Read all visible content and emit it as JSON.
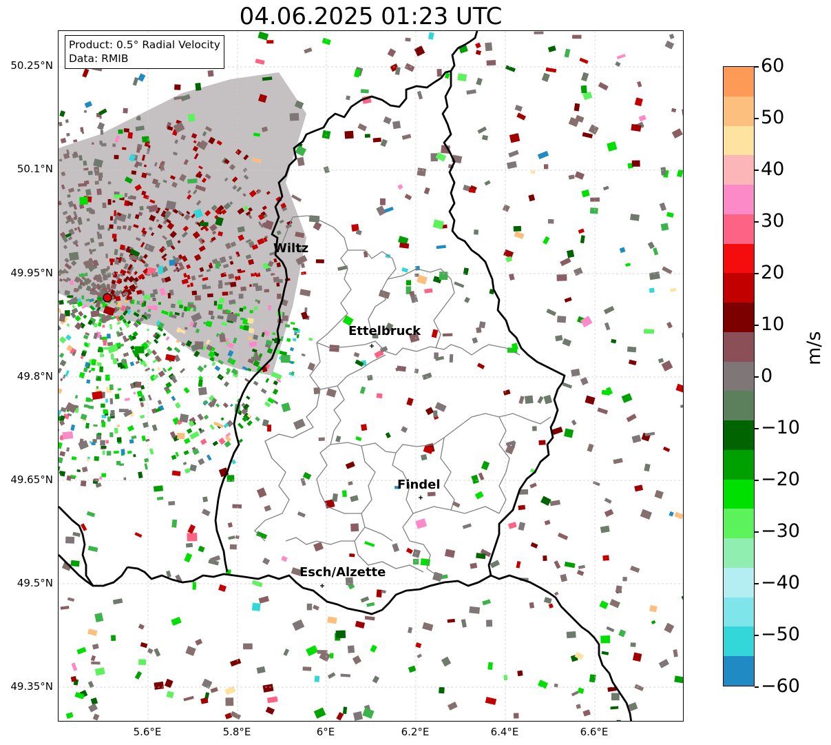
{
  "title": "04.06.2025 01:23 UTC",
  "info_box": {
    "product": "Product: 0.5° Radial Velocity",
    "data_source": "Data: RMIB"
  },
  "lat_labels": [
    "50.25°N",
    "50.1°N",
    "49.95°N",
    "49.8°N",
    "49.65°N",
    "49.5°N",
    "49.35°N"
  ],
  "lon_labels": [
    "5.6°E",
    "5.8°E",
    "6°E",
    "6.2°E",
    "6.4°E",
    "6.6°E"
  ],
  "cities": [
    {
      "name": "Wiltz"
    },
    {
      "name": "Ettelbruck"
    },
    {
      "name": "Findel"
    },
    {
      "name": "Esch/Alzette"
    }
  ],
  "colorbar": {
    "unit": "m/s",
    "ticks": [
      "60",
      "50",
      "40",
      "30",
      "20",
      "10",
      "0",
      "−10",
      "−20",
      "−30",
      "−40",
      "−50",
      "−60"
    ],
    "range": [
      -60,
      60
    ],
    "colors_top_to_bottom": [
      "#fd9a55",
      "#fdbf7d",
      "#fee3a0",
      "#fdb6b8",
      "#fc89c8",
      "#fc6384",
      "#f50c0c",
      "#c20000",
      "#7d0000",
      "#8a4f57",
      "#7e7677",
      "#5c7f5c",
      "#006400",
      "#00a000",
      "#00e000",
      "#5cf25c",
      "#90eeb0",
      "#b4eef2",
      "#7ee6ea",
      "#33d7da",
      "#1f8ac4"
    ]
  },
  "radar_site_color": "#e50000"
}
